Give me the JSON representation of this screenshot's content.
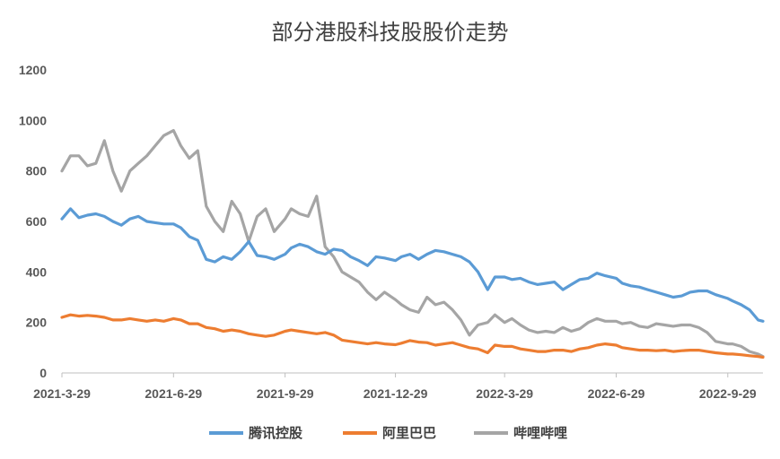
{
  "chart_data": {
    "type": "line",
    "title": "部分港股科技股股价走势",
    "xlabel": "",
    "ylabel": "",
    "ylim": [
      0,
      1200
    ],
    "y_ticks": [
      "0",
      "200",
      "400",
      "600",
      "800",
      "1000",
      "1200"
    ],
    "x_tick_labels": [
      "2021-3-29",
      "2021-6-29",
      "2021-9-29",
      "2021-12-29",
      "2022-3-29",
      "2022-6-29",
      "2022-9-29"
    ],
    "x_range": [
      "2021-03-29",
      "2022-10-28"
    ],
    "grid": false,
    "legend_position": "bottom",
    "x": [
      "2021-03-29",
      "2021-04-05",
      "2021-04-12",
      "2021-04-19",
      "2021-04-26",
      "2021-05-03",
      "2021-05-10",
      "2021-05-17",
      "2021-05-24",
      "2021-05-31",
      "2021-06-07",
      "2021-06-14",
      "2021-06-21",
      "2021-06-29",
      "2021-07-05",
      "2021-07-12",
      "2021-07-19",
      "2021-07-26",
      "2021-08-02",
      "2021-08-09",
      "2021-08-16",
      "2021-08-23",
      "2021-08-30",
      "2021-09-06",
      "2021-09-13",
      "2021-09-20",
      "2021-09-29",
      "2021-10-04",
      "2021-10-11",
      "2021-10-18",
      "2021-10-25",
      "2021-11-01",
      "2021-11-08",
      "2021-11-15",
      "2021-11-22",
      "2021-11-29",
      "2021-12-06",
      "2021-12-13",
      "2021-12-20",
      "2021-12-29",
      "2022-01-03",
      "2022-01-10",
      "2022-01-17",
      "2022-01-24",
      "2022-01-31",
      "2022-02-07",
      "2022-02-14",
      "2022-02-21",
      "2022-02-28",
      "2022-03-07",
      "2022-03-15",
      "2022-03-21",
      "2022-03-29",
      "2022-04-04",
      "2022-04-11",
      "2022-04-18",
      "2022-04-25",
      "2022-05-02",
      "2022-05-09",
      "2022-05-16",
      "2022-05-23",
      "2022-05-30",
      "2022-06-06",
      "2022-06-13",
      "2022-06-20",
      "2022-06-29",
      "2022-07-04",
      "2022-07-11",
      "2022-07-18",
      "2022-07-25",
      "2022-08-01",
      "2022-08-08",
      "2022-08-15",
      "2022-08-22",
      "2022-08-29",
      "2022-09-05",
      "2022-09-12",
      "2022-09-19",
      "2022-09-29",
      "2022-10-03",
      "2022-10-10",
      "2022-10-17",
      "2022-10-24",
      "2022-10-28"
    ],
    "series": [
      {
        "name": "腾讯控股",
        "color": "#5B9BD5",
        "values": [
          610,
          650,
          615,
          625,
          630,
          620,
          600,
          585,
          610,
          620,
          600,
          595,
          590,
          590,
          575,
          540,
          525,
          450,
          440,
          460,
          450,
          480,
          520,
          465,
          460,
          450,
          470,
          495,
          510,
          500,
          480,
          470,
          490,
          485,
          460,
          445,
          425,
          460,
          455,
          445,
          460,
          470,
          450,
          470,
          485,
          480,
          470,
          460,
          440,
          400,
          330,
          380,
          380,
          370,
          375,
          360,
          350,
          355,
          360,
          330,
          350,
          370,
          375,
          395,
          385,
          375,
          355,
          345,
          340,
          330,
          320,
          310,
          300,
          305,
          320,
          325,
          325,
          310,
          295,
          285,
          270,
          250,
          210,
          205
        ]
      },
      {
        "name": "阿里巴巴",
        "color": "#ED7D31",
        "values": [
          220,
          230,
          225,
          228,
          225,
          220,
          210,
          210,
          215,
          210,
          205,
          210,
          205,
          215,
          210,
          195,
          195,
          180,
          175,
          165,
          170,
          165,
          155,
          150,
          145,
          150,
          165,
          170,
          165,
          160,
          155,
          160,
          150,
          130,
          125,
          120,
          115,
          120,
          115,
          112,
          118,
          128,
          122,
          120,
          110,
          115,
          120,
          110,
          100,
          95,
          80,
          110,
          105,
          105,
          95,
          90,
          85,
          85,
          90,
          90,
          85,
          95,
          100,
          110,
          115,
          110,
          100,
          95,
          90,
          90,
          88,
          90,
          85,
          88,
          90,
          90,
          85,
          80,
          75,
          75,
          72,
          68,
          65,
          62
        ]
      },
      {
        "name": "哔哩哔哩",
        "color": "#A5A5A5",
        "values": [
          800,
          860,
          860,
          820,
          830,
          920,
          800,
          720,
          800,
          830,
          860,
          900,
          940,
          960,
          900,
          850,
          880,
          660,
          600,
          560,
          680,
          630,
          520,
          620,
          650,
          560,
          610,
          650,
          630,
          620,
          700,
          500,
          460,
          400,
          380,
          360,
          320,
          290,
          320,
          290,
          270,
          250,
          240,
          300,
          270,
          280,
          250,
          210,
          150,
          190,
          200,
          230,
          200,
          215,
          190,
          170,
          160,
          165,
          160,
          180,
          165,
          175,
          200,
          215,
          205,
          205,
          195,
          200,
          185,
          180,
          195,
          190,
          185,
          190,
          190,
          180,
          160,
          125,
          115,
          115,
          105,
          85,
          75,
          65
        ]
      }
    ]
  }
}
